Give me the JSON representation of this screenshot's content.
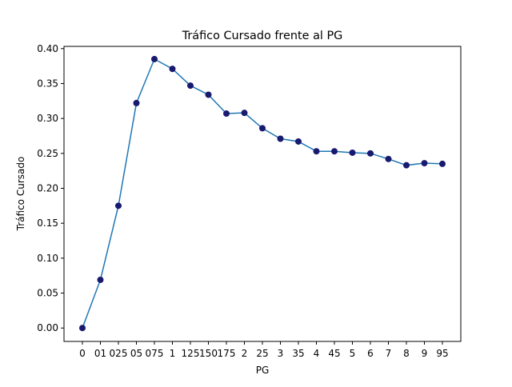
{
  "chart_data": {
    "type": "line",
    "title": "Tráfico Cursado frente al PG",
    "xlabel": "PG",
    "ylabel": "Tráfico Cursado",
    "categories": [
      "0",
      "01",
      "025",
      "05",
      "075",
      "1",
      "125",
      "150",
      "175",
      "2",
      "25",
      "3",
      "35",
      "4",
      "45",
      "5",
      "6",
      "7",
      "8",
      "9",
      "95"
    ],
    "values": [
      0.0,
      0.069,
      0.175,
      0.322,
      0.385,
      0.371,
      0.347,
      0.334,
      0.307,
      0.308,
      0.286,
      0.271,
      0.267,
      0.253,
      0.253,
      0.251,
      0.25,
      0.242,
      0.233,
      0.236,
      0.235
    ],
    "ylim": [
      -0.0192,
      0.4032
    ],
    "yticks": [
      0.0,
      0.05,
      0.1,
      0.15,
      0.2,
      0.25,
      0.3,
      0.35,
      0.4
    ],
    "ytick_labels": [
      "0.00",
      "0.05",
      "0.10",
      "0.15",
      "0.20",
      "0.25",
      "0.30",
      "0.35",
      "0.40"
    ],
    "grid": false,
    "legend": false,
    "line_color": "#1f77b4",
    "marker_color": "#191970"
  }
}
